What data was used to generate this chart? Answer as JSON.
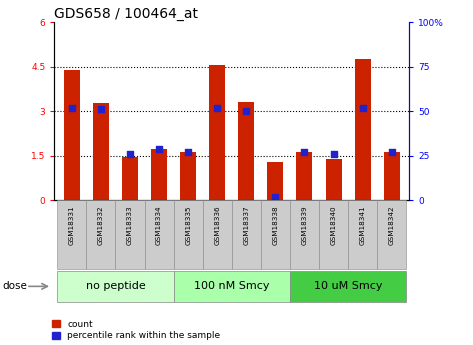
{
  "title": "GDS658 / 100464_at",
  "samples": [
    "GSM18331",
    "GSM18332",
    "GSM18333",
    "GSM18334",
    "GSM18335",
    "GSM18336",
    "GSM18337",
    "GSM18338",
    "GSM18339",
    "GSM18340",
    "GSM18341",
    "GSM18342"
  ],
  "count_values": [
    4.38,
    3.28,
    1.46,
    1.72,
    1.62,
    4.55,
    3.31,
    1.3,
    1.62,
    1.4,
    4.78,
    1.62
  ],
  "percentile_values": [
    52,
    51,
    26,
    29,
    27,
    52,
    50,
    2,
    27,
    26,
    52,
    27
  ],
  "ylim_left": [
    0,
    6
  ],
  "ylim_right": [
    0,
    100
  ],
  "yticks_left": [
    0,
    1.5,
    3.0,
    4.5,
    6.0
  ],
  "yticks_right": [
    0,
    25,
    50,
    75,
    100
  ],
  "ytick_labels_left": [
    "0",
    "1.5",
    "3",
    "4.5",
    "6"
  ],
  "ytick_labels_right": [
    "0",
    "25",
    "50",
    "75",
    "100%"
  ],
  "hlines": [
    1.5,
    3.0,
    4.5
  ],
  "bar_color": "#cc2200",
  "dot_color": "#2222cc",
  "dot_size": 25,
  "bar_width": 0.55,
  "group_configs": [
    {
      "label": "no peptide",
      "indices": [
        0,
        1,
        2,
        3
      ],
      "color": "#ccffcc"
    },
    {
      "label": "100 nM Smcy",
      "indices": [
        4,
        5,
        6,
        7
      ],
      "color": "#aaffaa"
    },
    {
      "label": "10 uM Smcy",
      "indices": [
        8,
        9,
        10,
        11
      ],
      "color": "#44cc44"
    }
  ],
  "dose_label": "dose",
  "legend_count": "count",
  "legend_percentile": "percentile rank within the sample",
  "tick_bg_color": "#cccccc",
  "title_fontsize": 10,
  "tick_fontsize": 6.5,
  "label_fontsize": 7,
  "group_fontsize": 8
}
